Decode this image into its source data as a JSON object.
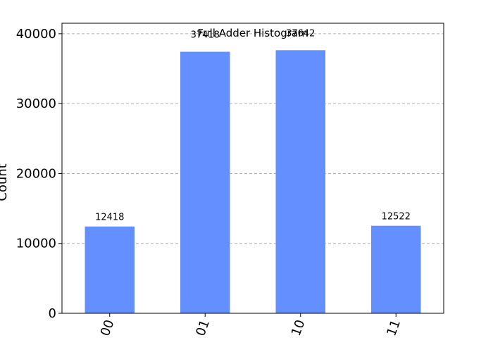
{
  "chart_data": {
    "type": "bar",
    "title": "Full Adder Histogram",
    "xlabel": "",
    "ylabel": "Count",
    "categories": [
      "00",
      "01",
      "10",
      "11"
    ],
    "values": [
      12418,
      37418,
      37642,
      12522
    ],
    "data_labels": [
      "12418",
      "37418",
      "37642",
      "12522"
    ],
    "ylim": [
      0,
      41500
    ],
    "yticks": [
      0,
      10000,
      20000,
      30000,
      40000
    ],
    "ytick_labels": [
      "0",
      "10000",
      "20000",
      "30000",
      "40000"
    ],
    "grid": true,
    "bar_color": "#648fff",
    "grid_color": "#b0b0b0"
  }
}
